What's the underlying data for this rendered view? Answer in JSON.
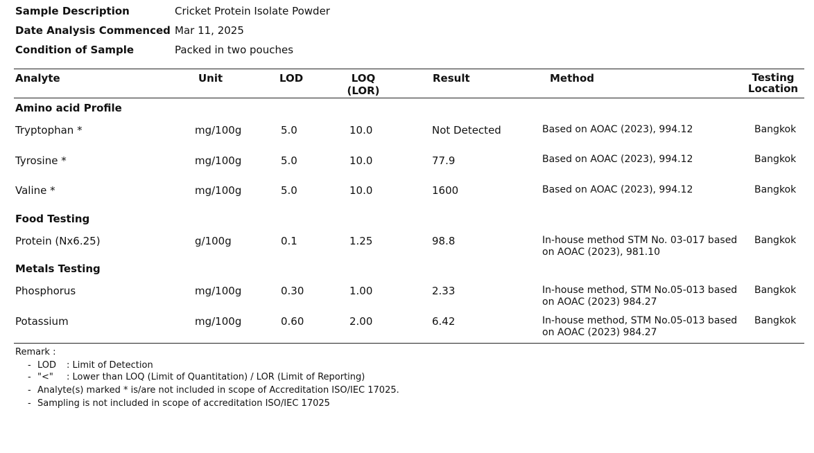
{
  "sample": [
    {
      "label": "Sample Description",
      "value": "Cricket Protein Isolate Powder"
    },
    {
      "label": "Date Analysis Commenced",
      "value": "Mar 11, 2025"
    },
    {
      "label": "Condition of Sample",
      "value": "Packed in two pouches"
    }
  ],
  "table": {
    "headers": {
      "analyte": "Analyte",
      "unit": "Unit",
      "lod": "LOD",
      "loq_line1": "LOQ",
      "loq_line2": "(LOR)",
      "result": "Result",
      "method": "Method",
      "location_line1": "Testing",
      "location_line2": "Location"
    },
    "sections": [
      {
        "title": "Amino acid Profile",
        "rows": [
          {
            "analyte": "Tryptophan  *",
            "unit": "mg/100g",
            "lod": "5.0",
            "loq": "10.0",
            "result": "Not Detected",
            "method": "Based on AOAC (2023), 994.12",
            "location": "Bangkok"
          },
          {
            "analyte": "Tyrosine  *",
            "unit": "mg/100g",
            "lod": "5.0",
            "loq": "10.0",
            "result": "77.9",
            "method": "Based on AOAC (2023), 994.12",
            "location": "Bangkok"
          },
          {
            "analyte": "Valine  *",
            "unit": "mg/100g",
            "lod": "5.0",
            "loq": "10.0",
            "result": "1600",
            "method": "Based on AOAC (2023), 994.12",
            "location": "Bangkok"
          }
        ]
      },
      {
        "title": "Food Testing",
        "rows": [
          {
            "analyte": "Protein (Nx6.25)",
            "unit": "g/100g",
            "lod": "0.1",
            "loq": "1.25",
            "result": "98.8",
            "method": "In-house method STM No. 03-017 based on AOAC (2023), 981.10",
            "location": "Bangkok"
          }
        ]
      },
      {
        "title": "Metals Testing",
        "rows": [
          {
            "analyte": "Phosphorus",
            "unit": "mg/100g",
            "lod": "0.30",
            "loq": "1.00",
            "result": "2.33",
            "method": "In-house method, STM No.05-013 based on AOAC (2023) 984.27",
            "location": "Bangkok"
          },
          {
            "analyte": "Potassium",
            "unit": "mg/100g",
            "lod": "0.60",
            "loq": "2.00",
            "result": "6.42",
            "method": "In-house method, STM No.05-013 based on AOAC (2023) 984.27",
            "location": "Bangkok"
          }
        ]
      }
    ]
  },
  "remarks": {
    "title": "Remark :",
    "items": [
      {
        "dash": "-",
        "key": "LOD",
        "text": ": Limit of Detection"
      },
      {
        "dash": "-",
        "key": "\"<\"",
        "text": ": Lower than  LOQ (Limit of Quantitation) / LOR (Limit of Reporting)"
      },
      {
        "dash": "-",
        "key": "",
        "text": "Analyte(s) marked * is/are not included in scope of Accreditation ISO/IEC 17025."
      },
      {
        "dash": "-",
        "key": "",
        "text": "Sampling is not included in scope of accreditation ISO/IEC 17025"
      }
    ]
  }
}
